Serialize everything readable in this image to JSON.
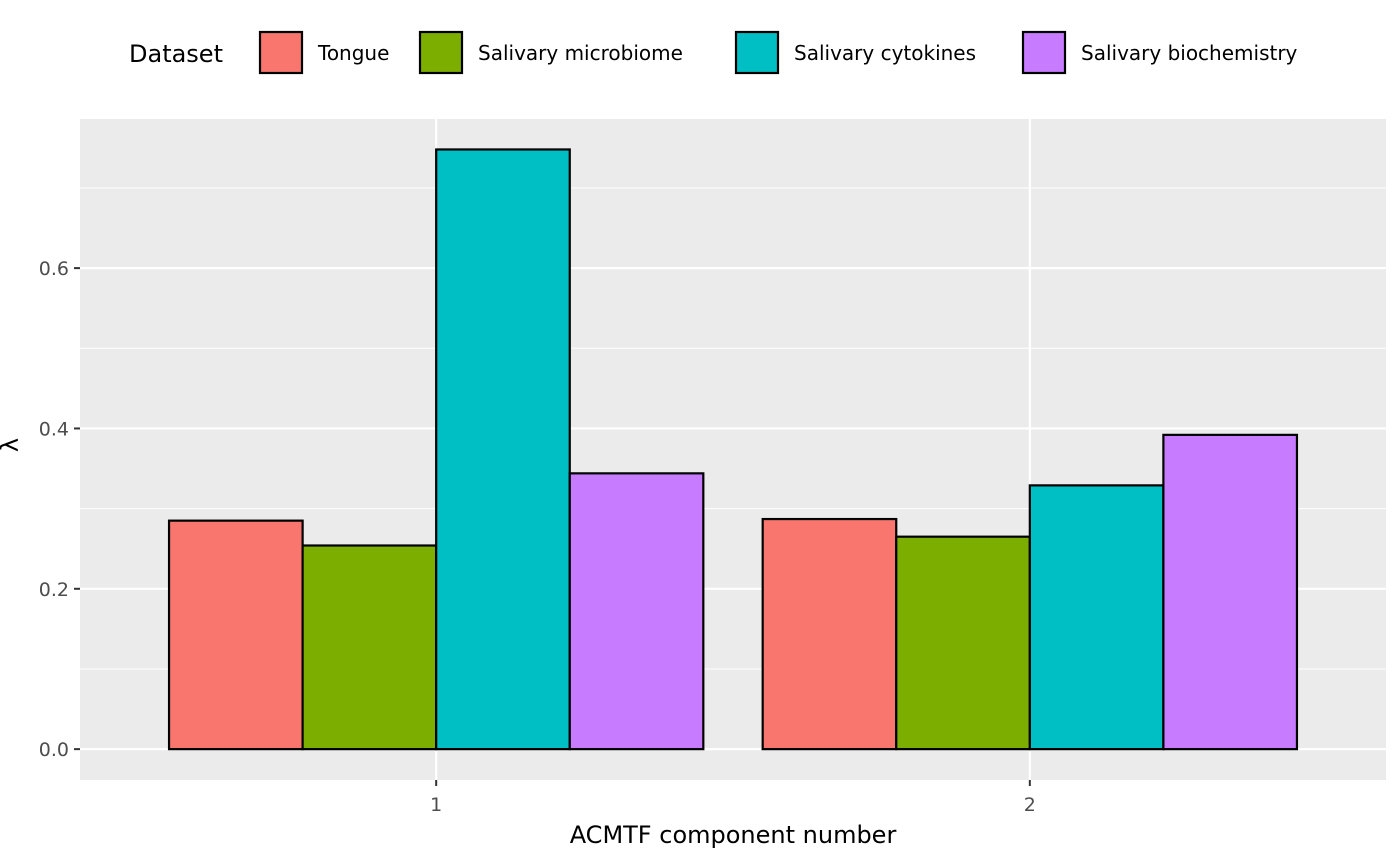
{
  "chart_data": {
    "type": "bar",
    "xlabel": "ACMTF component number",
    "ylabel": "λ",
    "categories": [
      "1",
      "2"
    ],
    "ylim": [
      -0.0385,
      0.786
    ],
    "yticks": [
      0.0,
      0.2,
      0.4,
      0.6
    ],
    "ytick_labels": [
      "0.0",
      "0.2",
      "0.4",
      "0.6"
    ],
    "grid": true,
    "legend": {
      "title": "Dataset",
      "position": "top"
    },
    "series": [
      {
        "name": "Tongue",
        "color": "#F8766D",
        "values": [
          0.285,
          0.287
        ]
      },
      {
        "name": "Salivary microbiome",
        "color": "#7CAE00",
        "values": [
          0.254,
          0.265
        ]
      },
      {
        "name": "Salivary cytokines",
        "color": "#00BFC4",
        "values": [
          0.748,
          0.329
        ]
      },
      {
        "name": "Salivary biochemistry",
        "color": "#C77CFF",
        "values": [
          0.344,
          0.392
        ]
      }
    ]
  }
}
